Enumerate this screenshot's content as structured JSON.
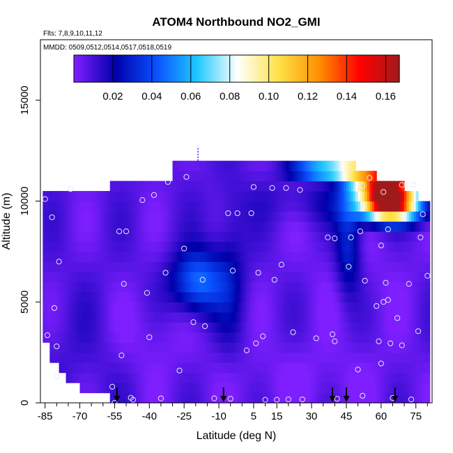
{
  "chart_data": {
    "type": "heatmap",
    "title": "ATOM4 Northbound NO2_GMI",
    "flights_label": "Flts: 7,8,9,10,11,12",
    "dates_label": "MMDD: 0509,0512,0514,0517,0518,0519",
    "xlabel": "Latitude (deg N)",
    "ylabel": "Altitude (m)",
    "xlim": [
      -87,
      82
    ],
    "ylim": [
      0,
      18000
    ],
    "x_ticks": [
      -85,
      -70,
      -55,
      -40,
      -25,
      -10,
      5,
      15,
      30,
      45,
      60,
      75
    ],
    "x_minor_ticks": [
      -80,
      -75,
      -65,
      -60,
      -50,
      -45,
      -35,
      -30,
      -20,
      -15,
      -5,
      0,
      10,
      20,
      25,
      35,
      40,
      50,
      55,
      65,
      70,
      80
    ],
    "y_ticks": [
      0,
      5000,
      10000,
      15000
    ],
    "colorbar": {
      "min": 0.0,
      "max": 0.167,
      "ticks": [
        0.02,
        0.04,
        0.06,
        0.08,
        0.1,
        0.12,
        0.14,
        0.16
      ],
      "tick_labels": [
        "0.02",
        "0.04",
        "0.06",
        "0.08",
        "0.10",
        "0.12",
        "0.14",
        "0.16"
      ],
      "colors": [
        "#7f1fff",
        "#0000aa",
        "#0a50ff",
        "#1ec8ff",
        "#ffffff",
        "#ffe24a",
        "#ff9000",
        "#ff0000",
        "#a01a1a"
      ]
    },
    "profile_arrows_lat": [
      -54,
      -8,
      39,
      45,
      66
    ],
    "observation_points": [
      [
        -85,
        10100
      ],
      [
        -84,
        3350
      ],
      [
        -82,
        9200
      ],
      [
        -81,
        4700
      ],
      [
        -80,
        2800
      ],
      [
        -80,
        1300
      ],
      [
        -79,
        7000
      ],
      [
        -74,
        10600
      ],
      [
        -56,
        800
      ],
      [
        -55,
        0
      ],
      [
        -53,
        8500
      ],
      [
        -52,
        2350
      ],
      [
        -51,
        5900
      ],
      [
        -50,
        8500
      ],
      [
        -48,
        250
      ],
      [
        -47,
        150
      ],
      [
        -43,
        10050
      ],
      [
        -41,
        5450
      ],
      [
        -40,
        3250
      ],
      [
        -38,
        10300
      ],
      [
        -35,
        220
      ],
      [
        -33,
        6450
      ],
      [
        -32,
        10950
      ],
      [
        -27,
        1600
      ],
      [
        -25,
        7650
      ],
      [
        -24,
        11200
      ],
      [
        -21,
        4000
      ],
      [
        -17,
        6100
      ],
      [
        -16,
        3800
      ],
      [
        -12,
        220
      ],
      [
        -6,
        9400
      ],
      [
        -5,
        200
      ],
      [
        -4,
        6550
      ],
      [
        -2,
        9400
      ],
      [
        2,
        2600
      ],
      [
        4,
        9400
      ],
      [
        5,
        10700
      ],
      [
        6,
        2950
      ],
      [
        7,
        6450
      ],
      [
        9,
        3300
      ],
      [
        10,
        150
      ],
      [
        13,
        10650
      ],
      [
        14,
        6100
      ],
      [
        15,
        150
      ],
      [
        17,
        6850
      ],
      [
        19,
        10650
      ],
      [
        20,
        170
      ],
      [
        22,
        3500
      ],
      [
        25,
        10550
      ],
      [
        26,
        170
      ],
      [
        32,
        3200
      ],
      [
        37,
        8200
      ],
      [
        39,
        3400
      ],
      [
        40,
        3050
      ],
      [
        40,
        8150
      ],
      [
        41,
        200
      ],
      [
        46,
        6750
      ],
      [
        47,
        8200
      ],
      [
        50,
        1650
      ],
      [
        51,
        8500
      ],
      [
        52,
        10750
      ],
      [
        52,
        350
      ],
      [
        53,
        6050
      ],
      [
        55,
        11150
      ],
      [
        58,
        4800
      ],
      [
        59,
        3050
      ],
      [
        60,
        1950
      ],
      [
        60,
        7800
      ],
      [
        61,
        10450
      ],
      [
        61,
        5000
      ],
      [
        62,
        5950
      ],
      [
        63,
        5100
      ],
      [
        63,
        8600
      ],
      [
        64,
        2950
      ],
      [
        65,
        240
      ],
      [
        67,
        4200
      ],
      [
        69,
        10800
      ],
      [
        69,
        2850
      ],
      [
        72,
        5900
      ],
      [
        73,
        170
      ],
      [
        74,
        10800
      ],
      [
        76,
        3550
      ],
      [
        77,
        8200
      ],
      [
        78,
        9350
      ],
      [
        80,
        6300
      ]
    ]
  }
}
